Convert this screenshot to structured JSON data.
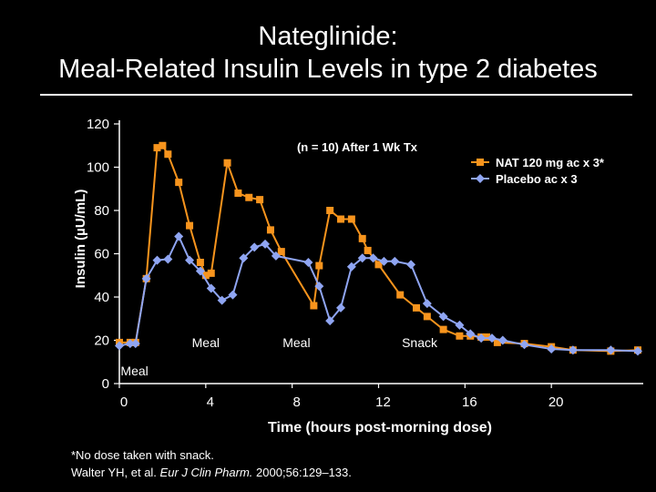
{
  "title_line1": "Nateglinide:",
  "title_line2": "Meal-Related Insulin Levels in type 2 diabetes",
  "footnote": "*No dose taken with snack.",
  "citation": {
    "authors": "Walter YH, et al.",
    "journal": "Eur J Clin Pharm.",
    "details": "2000;56:129–133."
  },
  "colors": {
    "background": "#000000",
    "nat": "#F7941D",
    "placebo": "#8FA5F2",
    "axis": "#FFFFFF"
  },
  "chart_data": {
    "type": "line",
    "subtitle": "(n = 10) After 1 Wk Tx",
    "xlabel": "Time (hours post-morning dose)",
    "ylabel": "Insulin (µU/mL)",
    "xlim": [
      0,
      24
    ],
    "ylim": [
      0,
      120
    ],
    "xticks": [
      0,
      4,
      8,
      12,
      16,
      20
    ],
    "yticks": [
      0,
      20,
      40,
      60,
      80,
      100,
      120
    ],
    "legend": "top-right",
    "annotations": [
      {
        "text": "Meal",
        "x": 0.7,
        "y": 6
      },
      {
        "text": "Meal",
        "x": 4.0,
        "y": 19
      },
      {
        "text": "Meal",
        "x": 8.2,
        "y": 19
      },
      {
        "text": "Snack",
        "x": 13.9,
        "y": 19
      }
    ],
    "series": [
      {
        "name": "NAT 120 mg ac x 3*",
        "color": "#F7941D",
        "marker": "square",
        "x": [
          0,
          0.5,
          0.75,
          1.25,
          1.75,
          2.0,
          2.25,
          2.75,
          3.25,
          3.75,
          4.0,
          4.25,
          5.0,
          5.5,
          6.0,
          6.5,
          7.0,
          7.5,
          9.0,
          9.25,
          9.75,
          10.25,
          10.75,
          11.25,
          11.5,
          12.0,
          13.0,
          13.75,
          14.25,
          15.0,
          15.75,
          16.25,
          16.75,
          17.0,
          17.5,
          18.75,
          20.0,
          21.0,
          22.75,
          24.0
        ],
        "y": [
          19,
          19,
          19,
          48.5,
          109,
          110,
          106,
          93,
          73,
          56,
          50,
          51,
          102,
          88,
          86,
          85,
          71,
          61,
          36,
          54.5,
          80,
          76,
          76,
          67,
          61.5,
          55,
          41,
          35,
          31,
          25,
          22,
          22,
          21.5,
          21.5,
          19,
          18.5,
          17,
          15.5,
          15,
          15.5
        ]
      },
      {
        "name": "Placebo ac x 3",
        "color": "#8FA5F2",
        "marker": "diamond",
        "x": [
          0,
          0.5,
          0.75,
          1.25,
          1.75,
          2.25,
          2.75,
          3.25,
          3.75,
          4.25,
          4.75,
          5.25,
          5.75,
          6.25,
          6.75,
          7.25,
          8.75,
          9.25,
          9.75,
          10.25,
          10.75,
          11.25,
          11.75,
          12.25,
          12.75,
          13.5,
          14.25,
          15.0,
          15.75,
          16.25,
          16.75,
          17.25,
          17.75,
          18.75,
          20.0,
          21.0,
          22.75,
          24.0
        ],
        "y": [
          17.5,
          18.5,
          18.5,
          48.5,
          57,
          57.5,
          68,
          57,
          52,
          44,
          38.5,
          41,
          58,
          63,
          64.5,
          59,
          56,
          45,
          29,
          35,
          54,
          58,
          58,
          56.5,
          56.5,
          55,
          37,
          31,
          27,
          23,
          21,
          21,
          20,
          18,
          16,
          15.5,
          15.5,
          15
        ]
      }
    ]
  }
}
